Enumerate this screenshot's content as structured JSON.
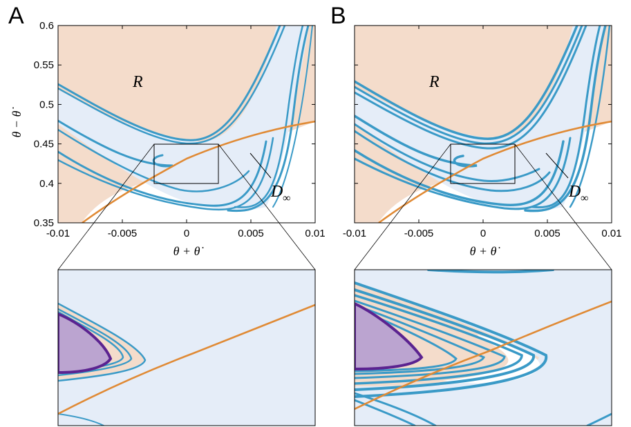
{
  "panels": {
    "a": {
      "label": "A",
      "xlabel": "θ + θ̇",
      "ylabel": "θ − θ̇",
      "region_r": "R",
      "region_d": "D",
      "region_d_sub": "∞"
    },
    "b": {
      "label": "B",
      "xlabel": "θ + θ̇",
      "region_r": "R",
      "region_d": "D",
      "region_d_sub": "∞"
    }
  },
  "colors": {
    "region_r": "#f4dccb",
    "region_d_inf": "#e5edf8",
    "basin_boundary": "#3a9ac7",
    "separatrix": "#e08a35",
    "inner_region": "#bba4d0",
    "inner_boundary": "#5b2390"
  },
  "chart_data": [
    {
      "type": "line",
      "panel": "A",
      "x_ticks": [
        "-0.01",
        "-0.005",
        "0",
        "0.005",
        "0.01"
      ],
      "y_ticks": [
        "0.35",
        "0.4",
        "0.45",
        "0.5",
        "0.55",
        "0.6"
      ],
      "xlim": [
        -0.01,
        0.01
      ],
      "ylim": [
        0.35,
        0.6
      ],
      "grid": false,
      "separatrix_points": [
        [
          -0.008,
          0.35
        ],
        [
          -0.004,
          0.384
        ],
        [
          0,
          0.415
        ],
        [
          0.004,
          0.443
        ],
        [
          0.008,
          0.466
        ],
        [
          0.01,
          0.479
        ]
      ],
      "zoom_box": {
        "x": [
          -0.0025,
          0.0025
        ],
        "y": [
          0.4,
          0.45
        ]
      },
      "regions": [
        "R",
        "D∞"
      ]
    },
    {
      "type": "line",
      "panel": "B",
      "x_ticks": [
        "-0.01",
        "-0.005",
        "0",
        "0.005",
        "0.01"
      ],
      "xlim": [
        -0.01,
        0.01
      ],
      "ylim": [
        0.35,
        0.6
      ],
      "grid": false,
      "separatrix_points": [
        [
          -0.008,
          0.35
        ],
        [
          -0.004,
          0.384
        ],
        [
          0,
          0.415
        ],
        [
          0.004,
          0.443
        ],
        [
          0.008,
          0.466
        ],
        [
          0.01,
          0.479
        ]
      ],
      "zoom_box": {
        "x": [
          -0.0025,
          0.0025
        ],
        "y": [
          0.4,
          0.45
        ]
      },
      "regions": [
        "R",
        "D∞"
      ]
    }
  ]
}
